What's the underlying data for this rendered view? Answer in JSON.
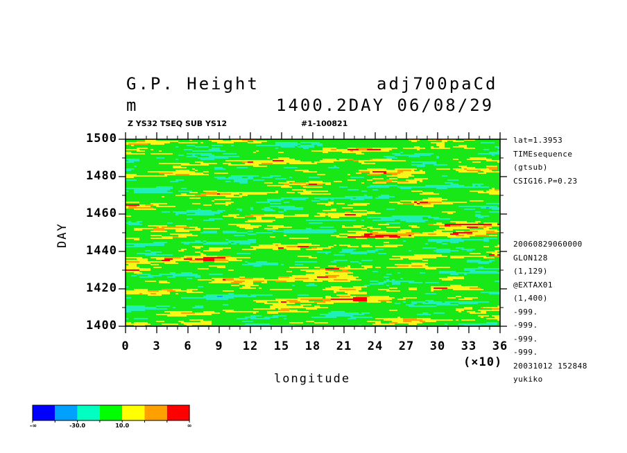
{
  "header": {
    "title_left": "G.P. Height",
    "title_right": "adj700paCd",
    "unit": "m",
    "time": "1400.2DAY 06/08/29",
    "sub_left": "Z YS32 TSEQ SUB YS12",
    "sub_right": "#1-100821"
  },
  "side_info": {
    "top": [
      "lat=1.3953",
      "TIMEsequence",
      "(gtsub)",
      "CSIG16.P=0.23"
    ],
    "bottom": [
      "20060829060000",
      "GLON128",
      "(1,129)",
      "@EXTAX01",
      "(1,400)",
      "-999.",
      "-999.",
      "-999.",
      "-999.",
      "20031012 152848",
      "yukiko"
    ]
  },
  "chart_data": {
    "type": "heatmap",
    "xlabel": "longitude",
    "x_multiplier": "(×10)",
    "ylabel": "DAY",
    "xlim": [
      0,
      36
    ],
    "ylim": [
      1400,
      1500
    ],
    "x_ticks": [
      "0",
      "3",
      "6",
      "9",
      "12",
      "15",
      "18",
      "21",
      "24",
      "27",
      "30",
      "33",
      "36"
    ],
    "y_ticks": [
      "1400",
      "1420",
      "1440",
      "1460",
      "1480",
      "1500"
    ],
    "colorbar": {
      "colors": [
        "#0000ff",
        "#00a0ff",
        "#00ffc0",
        "#00ff00",
        "#ffff00",
        "#ffa000",
        "#ff0000"
      ],
      "labels": [
        "-∞",
        "-30.0",
        "10.0",
        "∞"
      ]
    },
    "field_colors": {
      "blue": "#1aa0ff",
      "cyan": "#20f0b8",
      "green": "#18e818",
      "yellow": "#f8f818",
      "orange": "#ffa000",
      "red": "#ff0000"
    }
  }
}
